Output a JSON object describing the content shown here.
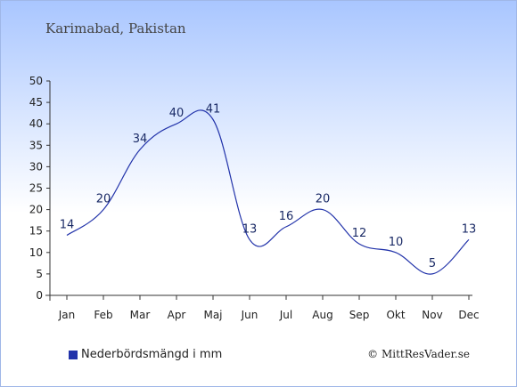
{
  "chart_data": {
    "type": "line",
    "title": "Karimabad, Pakistan",
    "categories": [
      "Jan",
      "Feb",
      "Mar",
      "Apr",
      "Maj",
      "Jun",
      "Jul",
      "Aug",
      "Sep",
      "Okt",
      "Nov",
      "Dec"
    ],
    "series": [
      {
        "name": "Nederbördsmängd i mm",
        "values": [
          14,
          20,
          34,
          40,
          41,
          13,
          16,
          20,
          12,
          10,
          5,
          13
        ]
      }
    ],
    "ylim": [
      0,
      50
    ],
    "yticks": [
      0,
      5,
      10,
      15,
      20,
      25,
      30,
      35,
      40,
      45,
      50
    ],
    "grid": false,
    "legend": "bottom-left",
    "line_color": "#2233aa"
  },
  "credit": "© MittResVader.se"
}
